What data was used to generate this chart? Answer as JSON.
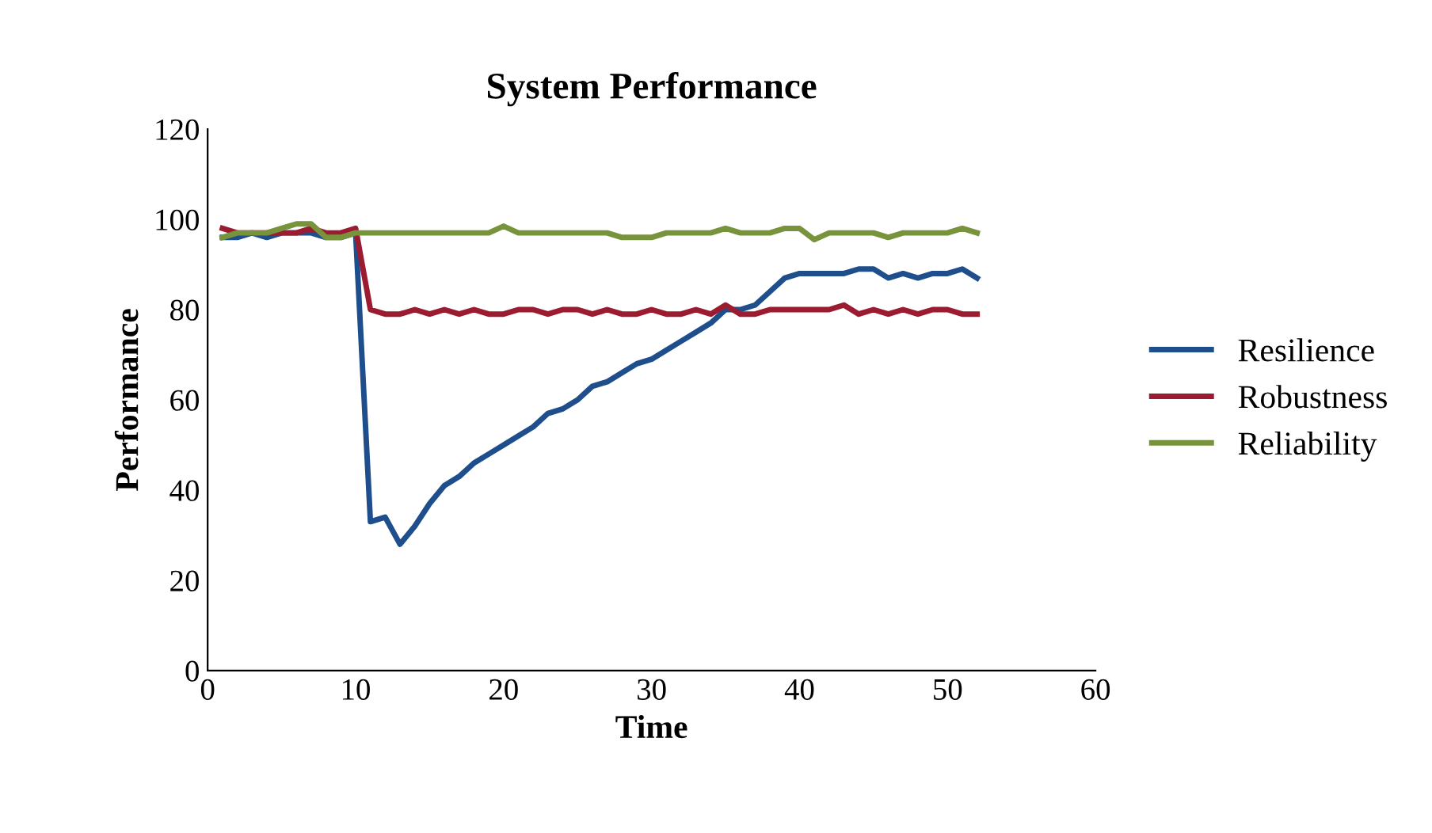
{
  "chart_data": {
    "type": "line",
    "title": "System Performance",
    "xlabel": "Time",
    "ylabel": "Performance",
    "x": [
      1,
      2,
      3,
      4,
      5,
      6,
      7,
      8,
      9,
      10,
      11,
      12,
      13,
      14,
      15,
      16,
      17,
      18,
      19,
      20,
      21,
      22,
      23,
      24,
      25,
      26,
      27,
      28,
      29,
      30,
      31,
      32,
      33,
      34,
      35,
      36,
      37,
      38,
      39,
      40,
      41,
      42,
      43,
      44,
      45,
      46,
      47,
      48,
      49,
      50,
      51,
      52
    ],
    "series": [
      {
        "name": "Resilience",
        "color": "#1f4e8c",
        "values": [
          96,
          96,
          97,
          96,
          97,
          97,
          97,
          96,
          96,
          97,
          33,
          34,
          28,
          32,
          37,
          41,
          43,
          46,
          48,
          50,
          52,
          54,
          57,
          58,
          60,
          63,
          64,
          66,
          68,
          69,
          71,
          73,
          75,
          77,
          80,
          80,
          81,
          84,
          87,
          88,
          88,
          88,
          88,
          89,
          89,
          87,
          88,
          87,
          88,
          88,
          89,
          87
        ]
      },
      {
        "name": "Robustness",
        "color": "#9b1b30",
        "values": [
          98,
          97,
          97,
          97,
          97,
          97,
          98,
          97,
          97,
          98,
          80,
          79,
          79,
          80,
          79,
          80,
          79,
          80,
          79,
          79,
          80,
          80,
          79,
          80,
          80,
          79,
          80,
          79,
          79,
          80,
          79,
          79,
          80,
          79,
          81,
          79,
          79,
          80,
          80,
          80,
          80,
          80,
          81,
          79,
          80,
          79,
          80,
          79,
          80,
          80,
          79,
          79
        ]
      },
      {
        "name": "Reliability",
        "color": "#77933c",
        "values": [
          96,
          97,
          97,
          97,
          98,
          99,
          99,
          96,
          96,
          97,
          97,
          97,
          97,
          97,
          97,
          97,
          97,
          97,
          97,
          98.5,
          97,
          97,
          97,
          97,
          97,
          97,
          97,
          96,
          96,
          96,
          97,
          97,
          97,
          97,
          98,
          97,
          97,
          97,
          98,
          98,
          95.5,
          97,
          97,
          97,
          97,
          96,
          97,
          97,
          97,
          97,
          98,
          97
        ]
      }
    ],
    "xlim": [
      0,
      60
    ],
    "xticks": [
      0,
      10,
      20,
      30,
      40,
      50,
      60
    ],
    "ylim": [
      0,
      120
    ],
    "yticks": [
      0,
      20,
      40,
      60,
      80,
      100,
      120
    ],
    "grid": false,
    "legend": "right",
    "marker": "none",
    "line_style": "solid"
  }
}
